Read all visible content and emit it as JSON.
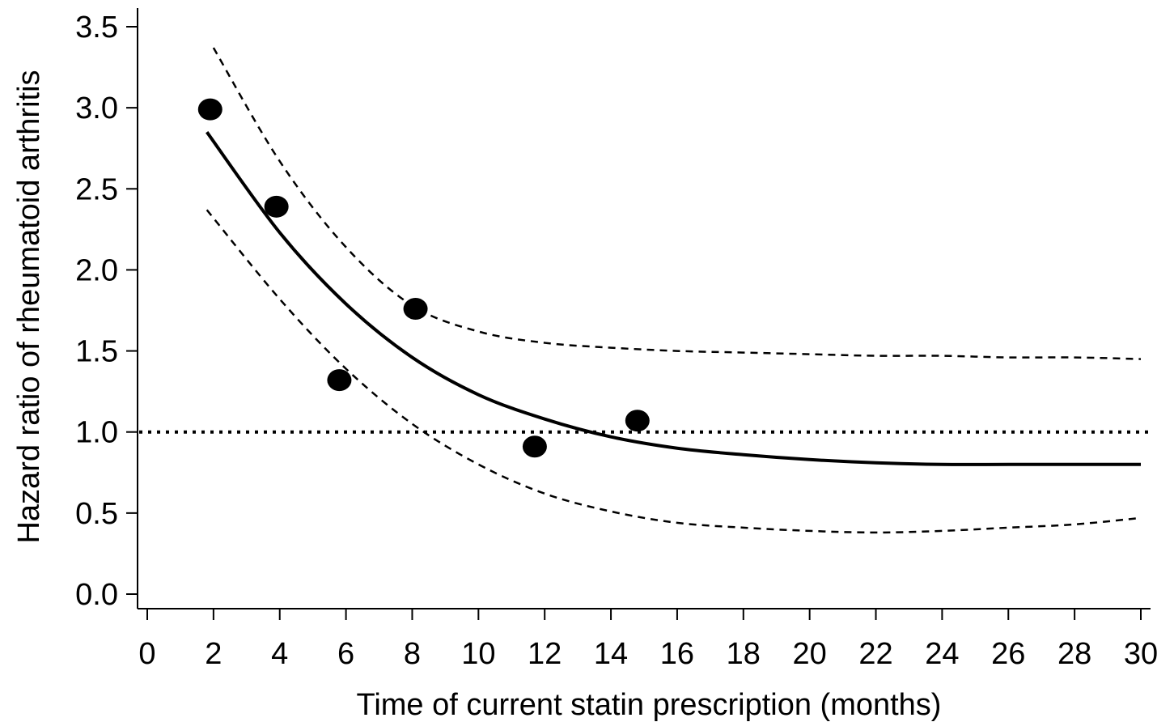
{
  "chart_data": {
    "type": "line",
    "xlabel": "Time of current statin prescription (months)",
    "ylabel": "Hazard ratio of rheumatoid arthritis",
    "xlim": [
      0,
      30
    ],
    "ylim": [
      0,
      3.5
    ],
    "x_ticks": [
      "0",
      "2",
      "4",
      "6",
      "8",
      "10",
      "12",
      "14",
      "16",
      "18",
      "20",
      "22",
      "24",
      "26",
      "28",
      "30"
    ],
    "y_ticks": [
      "0.0",
      "0.5",
      "1.0",
      "1.5",
      "2.0",
      "2.5",
      "3.0",
      "3.5"
    ],
    "grid": false,
    "reference_line": {
      "y": 1.0,
      "style": "dotted"
    },
    "points": [
      {
        "x": 1.9,
        "y": 2.99
      },
      {
        "x": 3.9,
        "y": 2.39
      },
      {
        "x": 5.8,
        "y": 1.32
      },
      {
        "x": 8.1,
        "y": 1.76
      },
      {
        "x": 11.7,
        "y": 0.91
      },
      {
        "x": 14.8,
        "y": 1.07
      }
    ],
    "series": [
      {
        "style": "solid",
        "x": [
          1.8,
          4,
          6,
          8,
          10,
          12,
          14,
          16,
          18,
          20,
          22,
          24,
          26,
          28,
          30
        ],
        "values": [
          2.85,
          2.23,
          1.79,
          1.46,
          1.23,
          1.08,
          0.97,
          0.9,
          0.86,
          0.83,
          0.81,
          0.8,
          0.8,
          0.8,
          0.8
        ]
      },
      {
        "style": "dashed",
        "x": [
          2,
          4,
          6,
          8,
          10,
          12,
          14,
          16,
          18,
          20,
          22,
          24,
          26,
          28,
          30
        ],
        "values": [
          3.37,
          2.67,
          2.14,
          1.78,
          1.62,
          1.55,
          1.52,
          1.5,
          1.49,
          1.48,
          1.47,
          1.47,
          1.46,
          1.46,
          1.45
        ]
      },
      {
        "style": "dashed",
        "x": [
          1.8,
          4,
          6,
          8,
          10,
          12,
          14,
          16,
          18,
          20,
          22,
          24,
          26,
          28,
          30
        ],
        "values": [
          2.37,
          1.82,
          1.39,
          1.05,
          0.8,
          0.62,
          0.51,
          0.44,
          0.41,
          0.39,
          0.38,
          0.39,
          0.41,
          0.43,
          0.47
        ]
      }
    ]
  }
}
